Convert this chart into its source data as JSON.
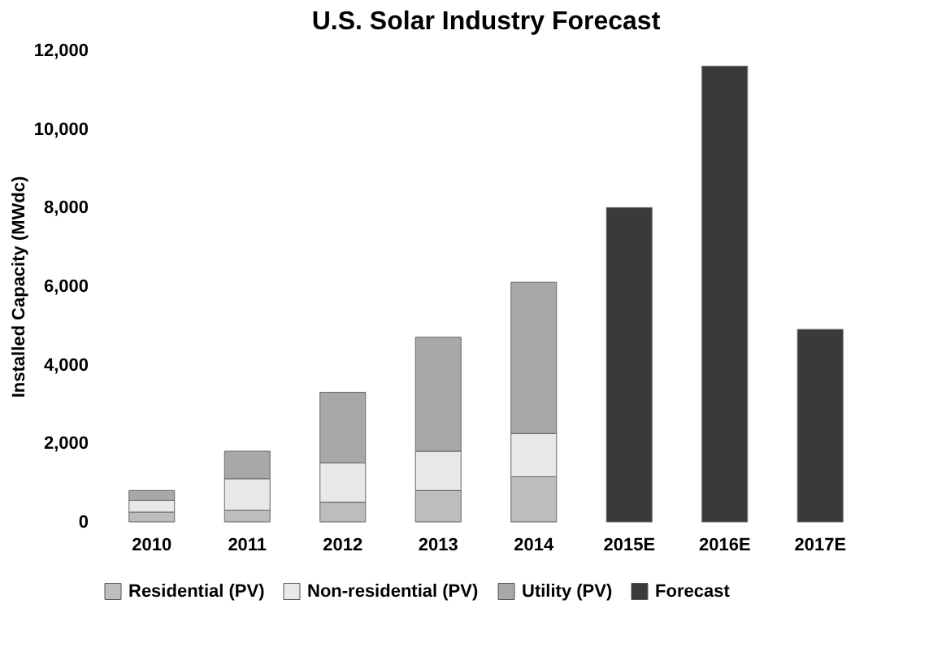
{
  "chart_data": {
    "type": "bar",
    "title": "U.S. Solar Industry Forecast",
    "ylabel": "Installed Capacity (MWdc)",
    "categories": [
      "2010",
      "2011",
      "2012",
      "2013",
      "2014",
      "2015E",
      "2016E",
      "2017E"
    ],
    "stacked": true,
    "series": [
      {
        "name": "Residential (PV)",
        "color": "#bdbdbd",
        "values": [
          250,
          300,
          500,
          800,
          1150,
          null,
          null,
          null
        ]
      },
      {
        "name": "Non-residential (PV)",
        "color": "#e8e8e8",
        "values": [
          300,
          800,
          1000,
          1000,
          1100,
          null,
          null,
          null
        ]
      },
      {
        "name": "Utility (PV)",
        "color": "#a8a8a8",
        "values": [
          250,
          700,
          1800,
          2900,
          3850,
          null,
          null,
          null
        ]
      },
      {
        "name": "Forecast",
        "color": "#3a3a3a",
        "values": [
          null,
          null,
          null,
          null,
          null,
          8000,
          11600,
          4900
        ]
      }
    ],
    "ylim": [
      0,
      12000
    ],
    "yticks": [
      0,
      {
        "value": 2000,
        "label": "2,000"
      },
      {
        "value": 4000,
        "label": "4,000"
      },
      {
        "value": 6000,
        "label": "6,000"
      },
      {
        "value": 8000,
        "label": "8,000"
      },
      {
        "value": 10000,
        "label": "10,000"
      },
      {
        "value": 12000,
        "label": "12,000"
      }
    ],
    "grid": false,
    "legend": "bottom"
  }
}
